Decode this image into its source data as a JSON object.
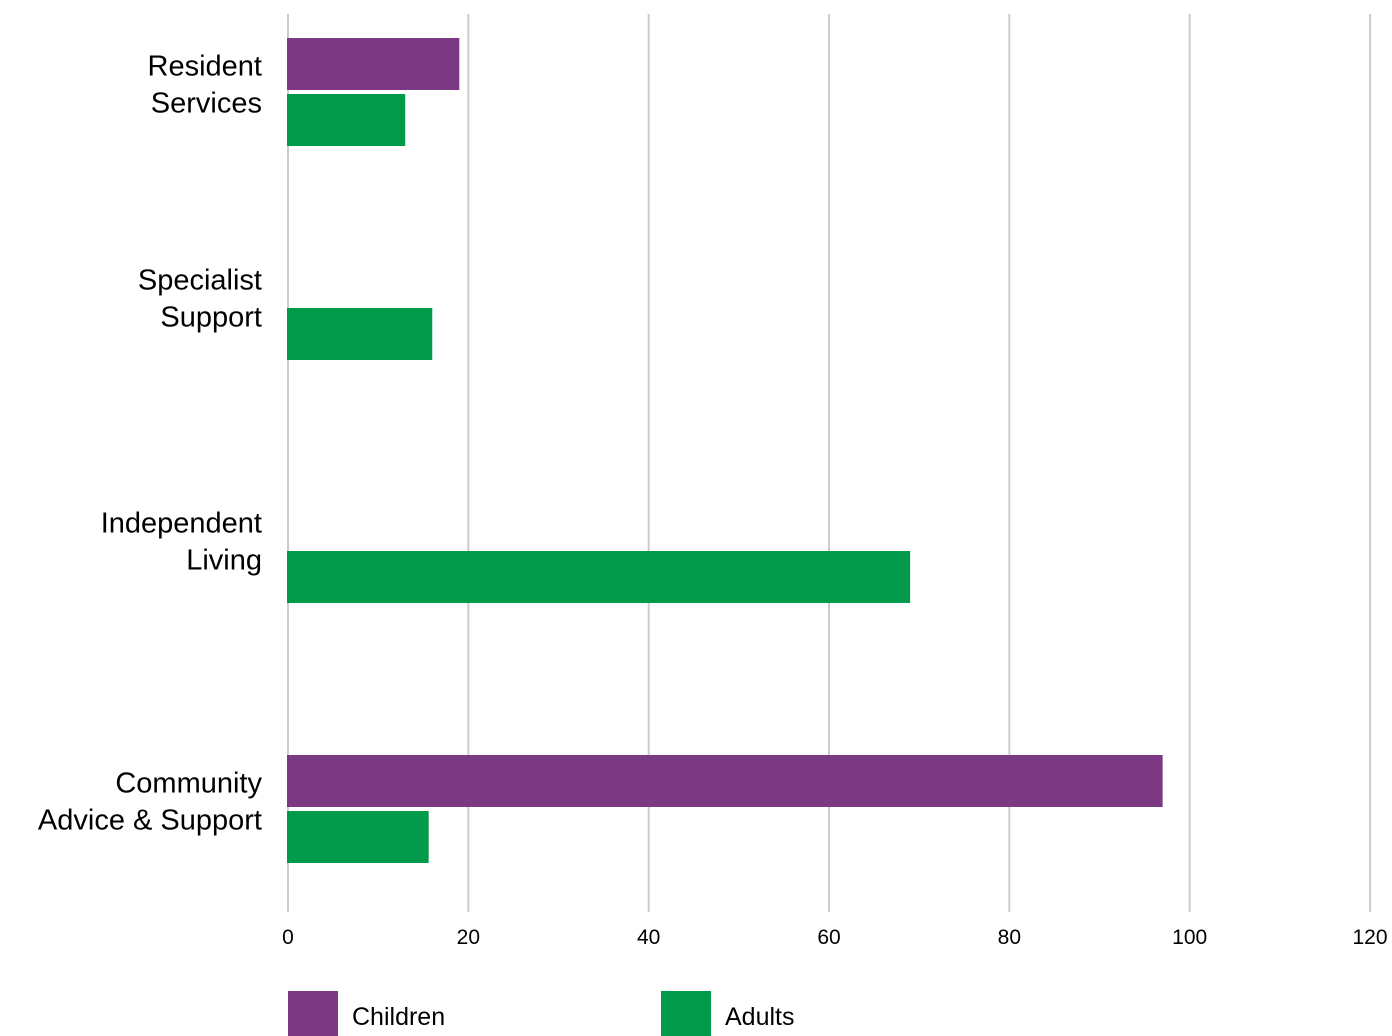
{
  "chart_data": {
    "type": "bar",
    "orientation": "horizontal",
    "categories": [
      [
        "Resident",
        "Services"
      ],
      [
        "Specialist",
        "Support"
      ],
      [
        "Independent",
        "Living"
      ],
      [
        "Community",
        "Advice & Support"
      ]
    ],
    "series": [
      {
        "name": "Children",
        "color": "#7b3984",
        "values": [
          19,
          null,
          null,
          97
        ]
      },
      {
        "name": "Adults",
        "color": "#009a4a",
        "values": [
          13,
          16,
          69,
          15.6
        ]
      }
    ],
    "xlim": [
      0,
      120
    ],
    "xticks": [
      "0",
      "20",
      "40",
      "60",
      "80",
      "100",
      "120"
    ],
    "grid": true,
    "legend_position": "bottom"
  }
}
